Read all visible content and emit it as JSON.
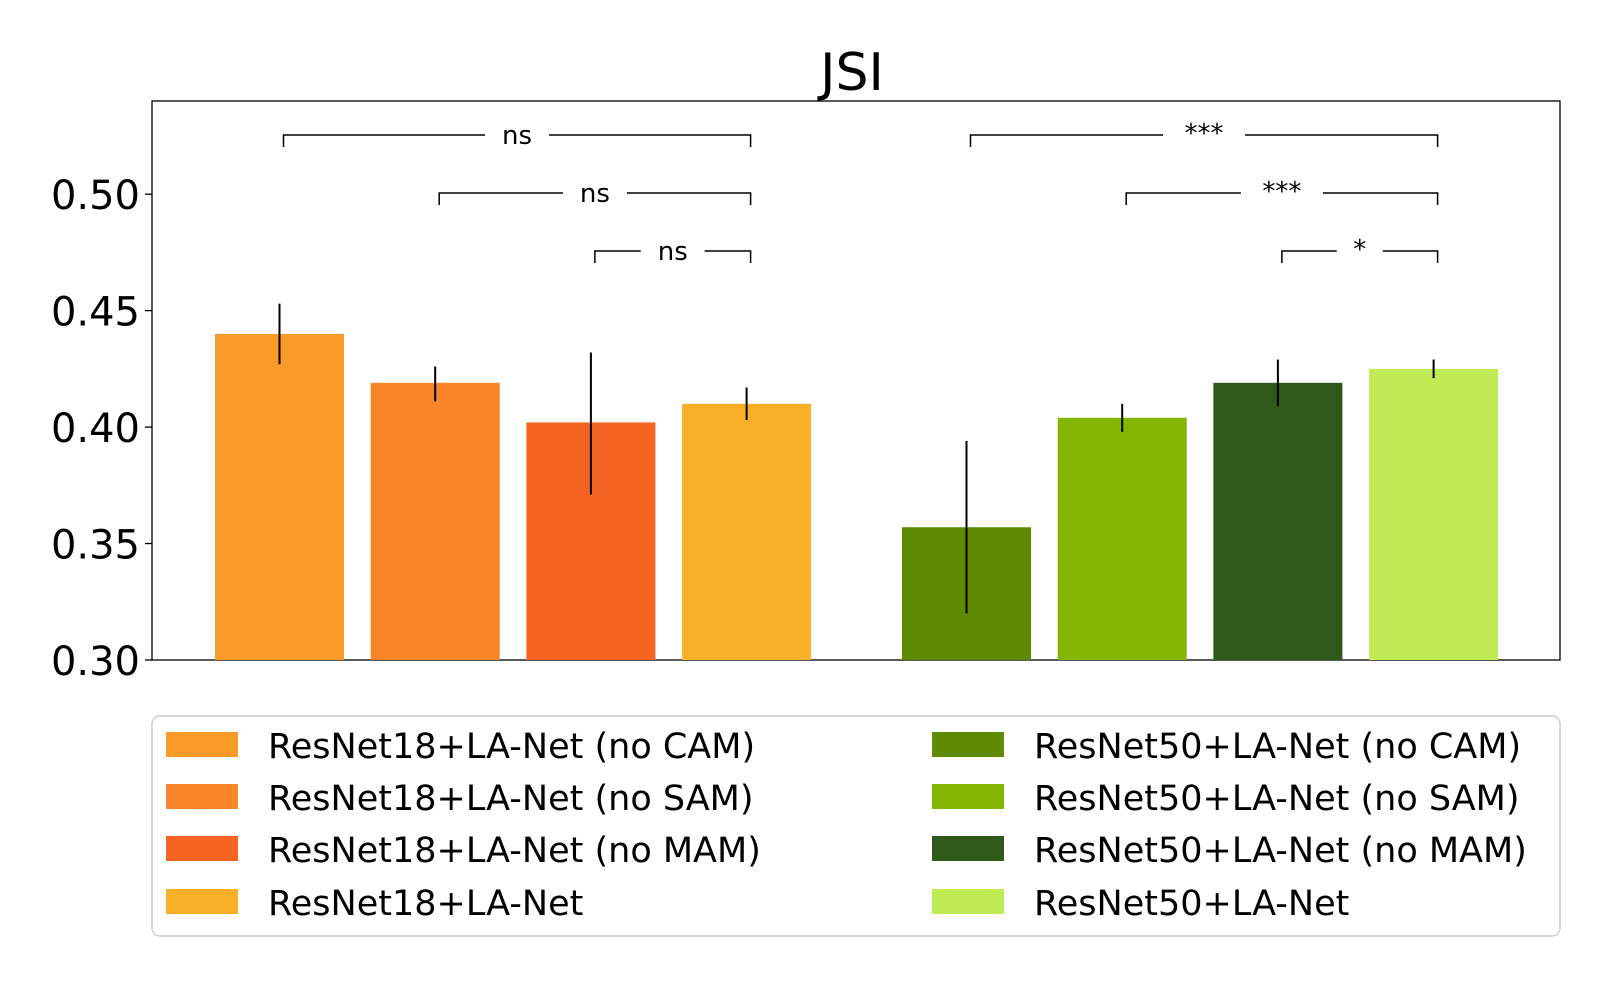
{
  "chart_data": {
    "type": "bar",
    "title": "JSI",
    "xlabel": "",
    "ylabel": "",
    "ylim": [
      0.3,
      0.54
    ],
    "yticks": [
      "0.30",
      "0.35",
      "0.40",
      "0.45",
      "0.50"
    ],
    "yticks_values": [
      0.3,
      0.35,
      0.4,
      0.45,
      0.5
    ],
    "grid": false,
    "legend_position": "bottom",
    "groups": [
      {
        "bars": [
          {
            "name": "ResNet18+LA-Net (no CAM)",
            "value": 0.44,
            "err_low": 0.427,
            "err_high": 0.453,
            "color": "#FA9A28"
          },
          {
            "name": "ResNet18+LA-Net (no SAM)",
            "value": 0.419,
            "err_low": 0.411,
            "err_high": 0.426,
            "color": "#F88528"
          },
          {
            "name": "ResNet18+LA-Net (no MAM)",
            "value": 0.402,
            "err_low": 0.371,
            "err_high": 0.432,
            "color": "#F56323"
          },
          {
            "name": "ResNet18+LA-Net",
            "value": 0.41,
            "err_low": 0.403,
            "err_high": 0.417,
            "color": "#F9B028"
          }
        ],
        "significance": [
          {
            "from": 0,
            "to": 3,
            "label": "ns"
          },
          {
            "from": 1,
            "to": 3,
            "label": "ns"
          },
          {
            "from": 2,
            "to": 3,
            "label": "ns"
          }
        ]
      },
      {
        "bars": [
          {
            "name": "ResNet50+LA-Net (no CAM)",
            "value": 0.357,
            "err_low": 0.32,
            "err_high": 0.394,
            "color": "#5E8A00"
          },
          {
            "name": "ResNet50+LA-Net (no SAM)",
            "value": 0.404,
            "err_low": 0.398,
            "err_high": 0.41,
            "color": "#84B500"
          },
          {
            "name": "ResNet50+LA-Net (no MAM)",
            "value": 0.419,
            "err_low": 0.409,
            "err_high": 0.429,
            "color": "#2E591A"
          },
          {
            "name": "ResNet50+LA-Net",
            "value": 0.425,
            "err_low": 0.421,
            "err_high": 0.429,
            "color": "#C0EB55"
          }
        ],
        "significance": [
          {
            "from": 0,
            "to": 3,
            "label": "***"
          },
          {
            "from": 1,
            "to": 3,
            "label": "***"
          },
          {
            "from": 2,
            "to": 3,
            "label": "*"
          }
        ]
      }
    ]
  }
}
